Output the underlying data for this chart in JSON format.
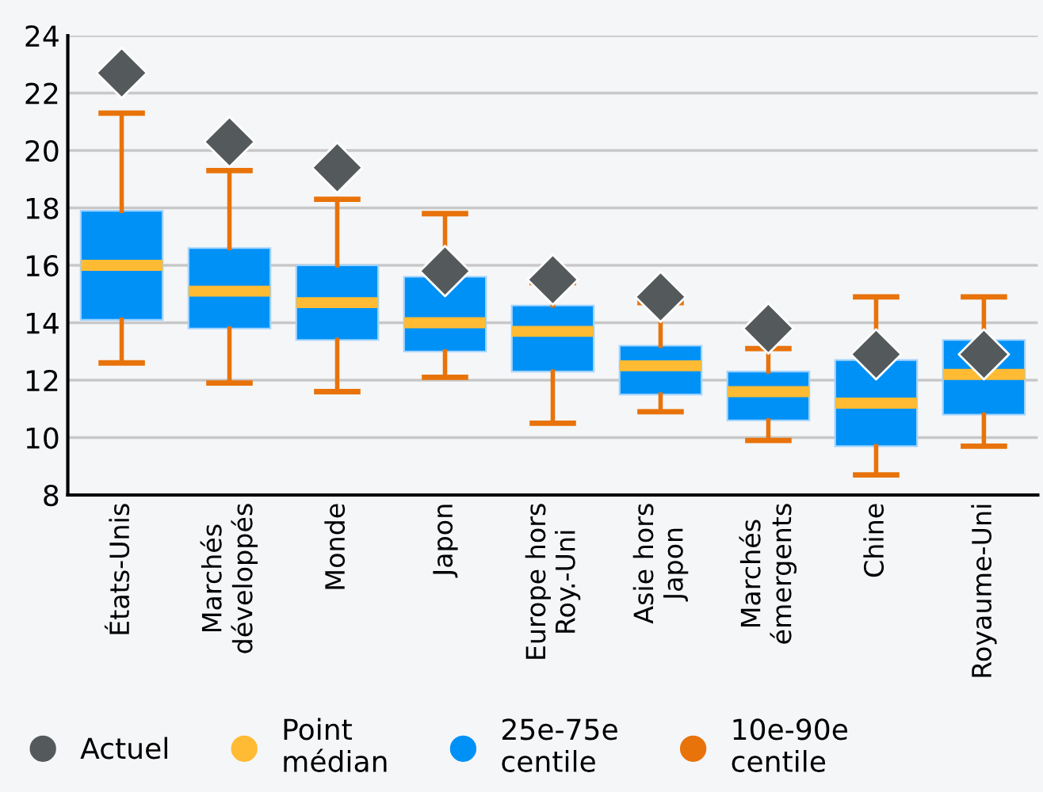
{
  "chart_data": {
    "type": "box",
    "categories": [
      "États-Unis",
      "Marchés\ndéveloppés",
      "Monde",
      "Japon",
      "Europe hors\nRoy.-Uni",
      "Asie hors\nJapon",
      "Marchés\némergents",
      "Chine",
      "Royaume-Uni"
    ],
    "series": [
      {
        "name": "Actuel",
        "type": "scatter",
        "marker": "diamond",
        "color": "#545a5c",
        "values": [
          22.7,
          20.3,
          19.4,
          15.8,
          15.5,
          14.9,
          13.8,
          12.9,
          12.9
        ]
      },
      {
        "name": "Point médian",
        "color": "#ffbb33",
        "values": [
          null,
          null,
          null,
          null,
          null,
          null,
          null,
          null,
          null
        ]
      },
      {
        "name": "25e-75e centile",
        "color": "#0091f7",
        "boxes": [
          {
            "low": 12.6,
            "q1": 14.1,
            "median": 16.0,
            "q3": 17.9,
            "high": 21.3
          },
          {
            "low": 11.9,
            "q1": 13.8,
            "median": 15.1,
            "q3": 16.6,
            "high": 19.3
          },
          {
            "low": 11.6,
            "q1": 13.4,
            "median": 14.7,
            "q3": 16.0,
            "high": 18.3
          },
          {
            "low": 12.1,
            "q1": 13.0,
            "median": 14.0,
            "q3": 15.6,
            "high": 17.8
          },
          {
            "low": 10.5,
            "q1": 12.3,
            "median": 13.7,
            "q3": 14.6,
            "high": 15.4
          },
          {
            "low": 10.9,
            "q1": 11.5,
            "median": 12.5,
            "q3": 13.2,
            "high": 14.7
          },
          {
            "low": 9.9,
            "q1": 10.6,
            "median": 11.6,
            "q3": 12.3,
            "high": 13.1
          },
          {
            "low": 8.7,
            "q1": 9.7,
            "median": 11.2,
            "q3": 12.7,
            "high": 14.9
          },
          {
            "low": 9.7,
            "q1": 10.8,
            "median": 12.2,
            "q3": 13.4,
            "high": 14.9
          }
        ]
      },
      {
        "name": "10e-90e centile",
        "color": "#e8730a",
        "values": [
          null,
          null,
          null,
          null,
          null,
          null,
          null,
          null,
          null
        ]
      }
    ],
    "ylim": [
      8,
      24
    ],
    "yticks": [
      8,
      10,
      12,
      14,
      16,
      18,
      20,
      22,
      24
    ],
    "grid": "y",
    "legend": "bottom"
  }
}
